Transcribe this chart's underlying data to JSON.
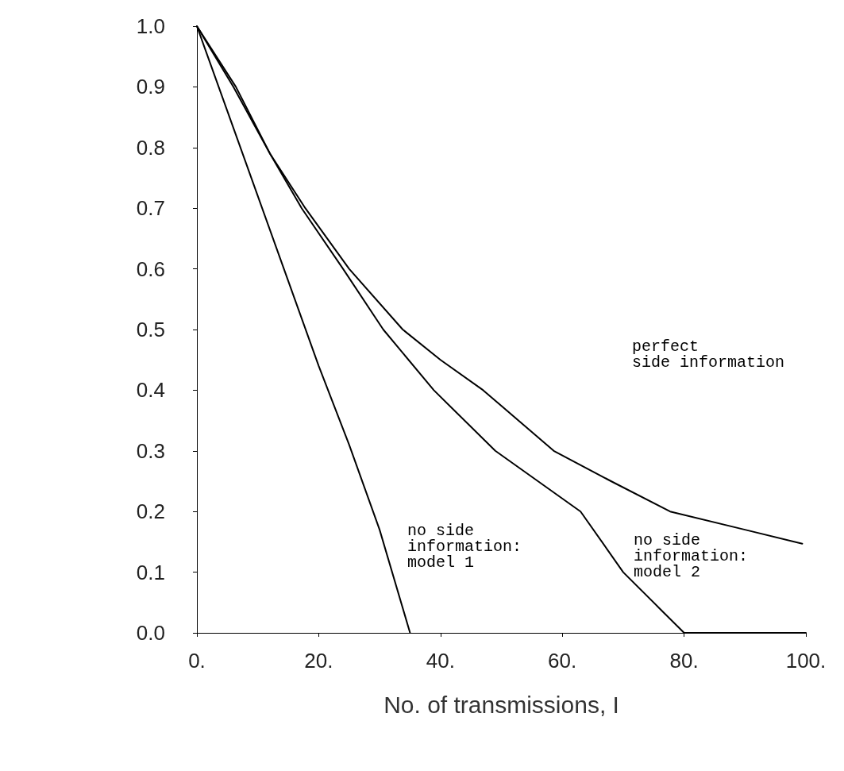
{
  "chart_data": {
    "type": "line",
    "xlabel": "No. of transmissions, I",
    "xlim": [
      0,
      100
    ],
    "ylim": [
      0,
      1
    ],
    "xticks": [
      {
        "value": 0,
        "label": "0."
      },
      {
        "value": 20,
        "label": "20."
      },
      {
        "value": 40,
        "label": "40."
      },
      {
        "value": 60,
        "label": "60."
      },
      {
        "value": 80,
        "label": "80."
      },
      {
        "value": 100,
        "label": "100."
      }
    ],
    "yticks": [
      {
        "value": 0,
        "label": "0.0"
      },
      {
        "value": 0.1,
        "label": "0.1"
      },
      {
        "value": 0.2,
        "label": "0.2"
      },
      {
        "value": 0.3,
        "label": "0.3"
      },
      {
        "value": 0.4,
        "label": "0.4"
      },
      {
        "value": 0.5,
        "label": "0.5"
      },
      {
        "value": 0.6,
        "label": "0.6"
      },
      {
        "value": 0.7,
        "label": "0.7"
      },
      {
        "value": 0.8,
        "label": "0.8"
      },
      {
        "value": 0.9,
        "label": "0.9"
      },
      {
        "value": 1,
        "label": "1.0"
      }
    ],
    "grid": false,
    "marker": "none",
    "line_style": "solid",
    "series": [
      {
        "color": "#000000",
        "x": [
          0,
          5,
          10,
          15,
          20,
          25,
          30,
          35
        ],
        "values": [
          1,
          0.86,
          0.72,
          0.58,
          0.44,
          0.31,
          0.17,
          0
        ]
      },
      {
        "color": "#000000",
        "x": [
          0,
          6.4,
          12,
          17.2,
          24,
          30.6,
          38.9,
          49,
          63,
          70,
          76,
          80,
          90,
          100
        ],
        "values": [
          1,
          0.9,
          0.79,
          0.7,
          0.6,
          0.5,
          0.4,
          0.3,
          0.2,
          0.1,
          0.04,
          0,
          0,
          0
        ]
      },
      {
        "color": "#000000",
        "x": [
          0,
          6,
          12,
          17.8,
          25,
          33.8,
          40,
          47,
          58.6,
          68,
          77.7,
          90,
          99.4
        ],
        "values": [
          1,
          0.9,
          0.79,
          0.7,
          0.6,
          0.5,
          0.45,
          0.4,
          0.3,
          0.25,
          0.2,
          0.17,
          0.147
        ]
      }
    ],
    "annotations": [
      "no side\ninformation:\nmodel 1",
      "no side\ninformation:\nmodel 2",
      "perfect\nside information"
    ]
  }
}
